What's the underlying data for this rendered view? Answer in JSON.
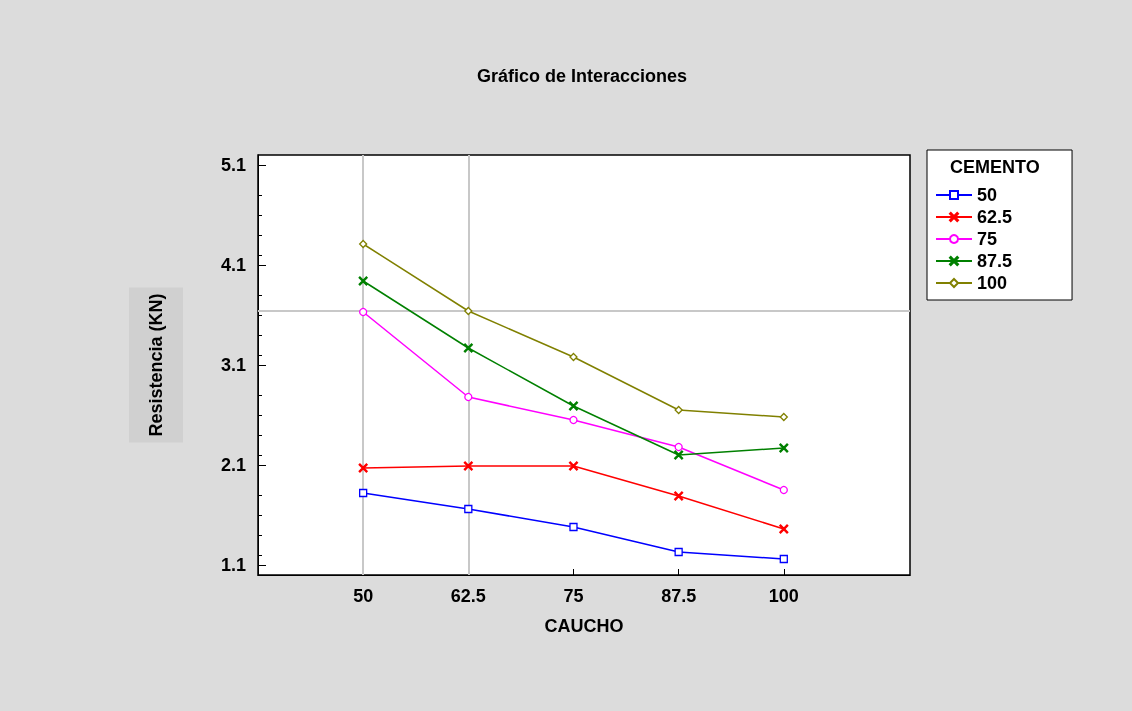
{
  "chart_data": {
    "type": "line",
    "title": "Gráfico de Interacciones",
    "xlabel": "CAUCHO",
    "ylabel": "Resistencia (KN)",
    "legend_title": "CEMENTO",
    "legend": "top right",
    "grid": false,
    "x": [
      50,
      62.5,
      75,
      87.5,
      100
    ],
    "xlim": [
      37.5,
      115
    ],
    "xticks": [
      50,
      62.5,
      75,
      87.5,
      100
    ],
    "ylim": [
      1.0,
      5.2
    ],
    "yticks": [
      1.1,
      2.1,
      3.1,
      4.1,
      5.1
    ],
    "series": [
      {
        "name": "50",
        "color": "#0000ff",
        "marker": "square",
        "values": [
          1.82,
          1.66,
          1.48,
          1.23,
          1.16
        ]
      },
      {
        "name": "62.5",
        "color": "#ff0000",
        "marker": "cross",
        "values": [
          2.07,
          2.09,
          2.09,
          1.79,
          1.46
        ]
      },
      {
        "name": "75",
        "color": "#ff00ff",
        "marker": "circle",
        "values": [
          3.63,
          2.78,
          2.55,
          2.28,
          1.85
        ]
      },
      {
        "name": "87.5",
        "color": "#008000",
        "marker": "cross",
        "values": [
          3.94,
          3.27,
          2.69,
          2.2,
          2.27
        ]
      },
      {
        "name": "100",
        "color": "#808000",
        "marker": "diamond",
        "values": [
          4.31,
          3.64,
          3.18,
          2.65,
          2.58
        ]
      }
    ],
    "ref_lines": [
      {
        "axis": "x",
        "value": 50,
        "color": "#c8c8c8"
      },
      {
        "axis": "x",
        "value": 62.5,
        "color": "#c8c8c8"
      },
      {
        "axis": "y",
        "value": 3.64,
        "color": "#c8c8c8"
      }
    ]
  }
}
